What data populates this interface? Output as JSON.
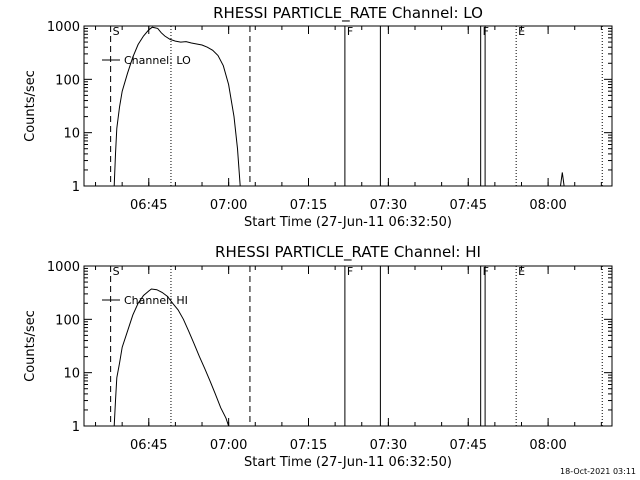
{
  "footer_timestamp": "18-Oct-2021 03:11",
  "chart_data": [
    {
      "type": "line",
      "title": "RHESSI PARTICLE_RATE Channel: LO",
      "xlabel": "Start Time (27-Jun-11 06:32:50)",
      "ylabel": "Counts/sec",
      "scale": "log",
      "xlim": [
        "06:32:50",
        "08:12:00"
      ],
      "ylim": [
        1,
        1000
      ],
      "x_ticks": [
        "06:45",
        "07:00",
        "07:15",
        "07:30",
        "07:45",
        "08:00"
      ],
      "y_ticks": [
        "1",
        "10",
        "100",
        "1000"
      ],
      "legend": {
        "label": "Channel: LO",
        "position": "top-left"
      },
      "series": [
        {
          "name": "Channel: LO",
          "points": [
            [
              "06:38:30",
              1
            ],
            [
              "06:38:45",
              4
            ],
            [
              "06:39:00",
              12
            ],
            [
              "06:39:30",
              30
            ],
            [
              "06:40:00",
              60
            ],
            [
              "06:41:00",
              130
            ],
            [
              "06:42:00",
              260
            ],
            [
              "06:43:00",
              450
            ],
            [
              "06:44:00",
              650
            ],
            [
              "06:45:00",
              850
            ],
            [
              "06:45:40",
              950
            ],
            [
              "06:46:40",
              900
            ],
            [
              "06:47:20",
              750
            ],
            [
              "06:48:00",
              650
            ],
            [
              "06:49:00",
              560
            ],
            [
              "06:50:00",
              520
            ],
            [
              "06:51:00",
              500
            ],
            [
              "06:52:00",
              510
            ],
            [
              "06:53:00",
              480
            ],
            [
              "06:54:00",
              460
            ],
            [
              "06:55:00",
              440
            ],
            [
              "06:56:00",
              400
            ],
            [
              "06:57:00",
              350
            ],
            [
              "06:58:00",
              280
            ],
            [
              "06:59:00",
              180
            ],
            [
              "07:00:00",
              80
            ],
            [
              "07:01:00",
              20
            ],
            [
              "07:01:40",
              5
            ],
            [
              "07:02:10",
              1
            ]
          ]
        },
        {
          "name": "",
          "points": [
            [
              "08:02:20",
              1
            ],
            [
              "08:02:40",
              1.8
            ],
            [
              "08:03:00",
              1
            ]
          ]
        }
      ],
      "markers": [
        {
          "label": "S",
          "time": "06:37:50",
          "style": "dashed"
        },
        {
          "label": "",
          "time": "07:04:00",
          "style": "dashed"
        },
        {
          "label": "",
          "time": "06:49:10",
          "style": "dotted"
        },
        {
          "label": "F",
          "time": "07:21:50",
          "style": "solid"
        },
        {
          "label": "",
          "time": "07:28:30",
          "style": "solid"
        },
        {
          "label": "F",
          "time": "07:47:20",
          "style": "solid"
        },
        {
          "label": "",
          "time": "07:48:10",
          "style": "solid"
        },
        {
          "label": "E",
          "time": "07:54:00",
          "style": "dotted"
        },
        {
          "label": "",
          "time": "08:10:10",
          "style": "dotted"
        }
      ]
    },
    {
      "type": "line",
      "title": "RHESSI PARTICLE_RATE Channel: HI",
      "xlabel": "Start Time (27-Jun-11 06:32:50)",
      "ylabel": "Counts/sec",
      "scale": "log",
      "xlim": [
        "06:32:50",
        "08:12:00"
      ],
      "ylim": [
        1,
        1000
      ],
      "x_ticks": [
        "06:45",
        "07:00",
        "07:15",
        "07:30",
        "07:45",
        "08:00"
      ],
      "y_ticks": [
        "1",
        "10",
        "100",
        "1000"
      ],
      "legend": {
        "label": "Channel: HI",
        "position": "top-left"
      },
      "series": [
        {
          "name": "Channel: HI",
          "points": [
            [
              "06:38:30",
              1
            ],
            [
              "06:38:45",
              3
            ],
            [
              "06:39:00",
              8
            ],
            [
              "06:39:30",
              15
            ],
            [
              "06:40:00",
              30
            ],
            [
              "06:41:00",
              60
            ],
            [
              "06:42:00",
              120
            ],
            [
              "06:43:00",
              200
            ],
            [
              "06:44:00",
              280
            ],
            [
              "06:45:00",
              340
            ],
            [
              "06:45:30",
              370
            ],
            [
              "06:46:30",
              360
            ],
            [
              "06:47:30",
              320
            ],
            [
              "06:48:30",
              270
            ],
            [
              "06:49:30",
              200
            ],
            [
              "06:50:30",
              150
            ],
            [
              "06:51:30",
              100
            ],
            [
              "06:52:30",
              60
            ],
            [
              "06:53:30",
              35
            ],
            [
              "06:54:30",
              20
            ],
            [
              "06:55:30",
              12
            ],
            [
              "06:56:30",
              7
            ],
            [
              "06:57:30",
              4
            ],
            [
              "06:58:30",
              2.2
            ],
            [
              "06:59:30",
              1.4
            ],
            [
              "07:00:00",
              1
            ]
          ]
        }
      ],
      "markers": [
        {
          "label": "S",
          "time": "06:37:50",
          "style": "dashed"
        },
        {
          "label": "",
          "time": "07:04:00",
          "style": "dashed"
        },
        {
          "label": "",
          "time": "06:49:10",
          "style": "dotted"
        },
        {
          "label": "F",
          "time": "07:21:50",
          "style": "solid"
        },
        {
          "label": "",
          "time": "07:28:30",
          "style": "solid"
        },
        {
          "label": "F",
          "time": "07:47:20",
          "style": "solid"
        },
        {
          "label": "",
          "time": "07:48:10",
          "style": "solid"
        },
        {
          "label": "E",
          "time": "07:54:00",
          "style": "dotted"
        },
        {
          "label": "",
          "time": "08:10:10",
          "style": "dotted"
        }
      ]
    }
  ]
}
